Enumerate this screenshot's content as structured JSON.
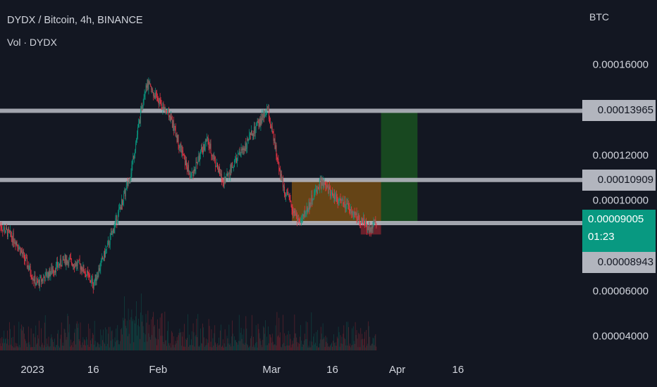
{
  "header": {
    "title": "DYDX / Bitcoin, 4h, BINANCE",
    "volume": "Vol · DYDX",
    "currency": "BTC"
  },
  "price_axis": {
    "ticks": [
      "0.00016000",
      "0.00012000",
      "0.00010000",
      "0.00006000",
      "0.00004000"
    ]
  },
  "time_axis": {
    "ticks": [
      "2023",
      "16",
      "Feb",
      "Mar",
      "16",
      "Apr",
      "16"
    ]
  },
  "levels": [
    {
      "value": 0.00013965,
      "label": "0.00013965"
    },
    {
      "value": 0.00010909,
      "label": "0.00010909"
    },
    {
      "value": 9.005e-05,
      "label": "0.00009005"
    }
  ],
  "last_price": {
    "label": "0.00009005",
    "countdown": "01:23",
    "color": "#089981"
  },
  "low_badge": {
    "label": "0.00008943"
  },
  "colors": {
    "up": "#089981",
    "down": "#f23645",
    "background": "#131722",
    "level_line": "#b2b5be"
  },
  "chart_data": {
    "type": "candlestick",
    "title": "DYDX / Bitcoin, 4h, BINANCE",
    "y_unit": "BTC",
    "x_ticks": [
      "2023",
      "16",
      "Feb",
      "Mar",
      "16",
      "Apr",
      "16"
    ],
    "approx_close_path": [
      {
        "date": "Dec 24",
        "value": 8.9e-05
      },
      {
        "date": "Dec 28",
        "value": 8.2e-05
      },
      {
        "date": "Jan 1",
        "value": 6.3e-05
      },
      {
        "date": "Jan 8",
        "value": 7.4e-05
      },
      {
        "date": "Jan 12",
        "value": 7.1e-05
      },
      {
        "date": "Jan 15",
        "value": 6.3e-05
      },
      {
        "date": "Jan 19",
        "value": 8.2e-05
      },
      {
        "date": "Jan 24",
        "value": 0.00011
      },
      {
        "date": "Jan 28",
        "value": 0.000152
      },
      {
        "date": "Feb 3",
        "value": 0.000137
      },
      {
        "date": "Feb 8",
        "value": 0.00011
      },
      {
        "date": "Feb 12",
        "value": 0.000127
      },
      {
        "date": "Feb 16",
        "value": 0.000108
      },
      {
        "date": "Feb 21",
        "value": 0.000123
      },
      {
        "date": "Feb 27",
        "value": 0.00014
      },
      {
        "date": "Mar 3",
        "value": 0.000105
      },
      {
        "date": "Mar 7",
        "value": 9e-05
      },
      {
        "date": "Mar 12",
        "value": 0.000108
      },
      {
        "date": "Mar 18",
        "value": 9.8e-05
      },
      {
        "date": "Mar 24",
        "value": 8.8e-05
      },
      {
        "date": "Mar 26",
        "value": 9e-05
      }
    ],
    "horizontal_levels": [
      0.00013965,
      0.00010909,
      9.005e-05
    ],
    "position_tool": {
      "entry": 9.005e-05,
      "target": 0.00013965,
      "stop": 8.5e-05
    }
  }
}
